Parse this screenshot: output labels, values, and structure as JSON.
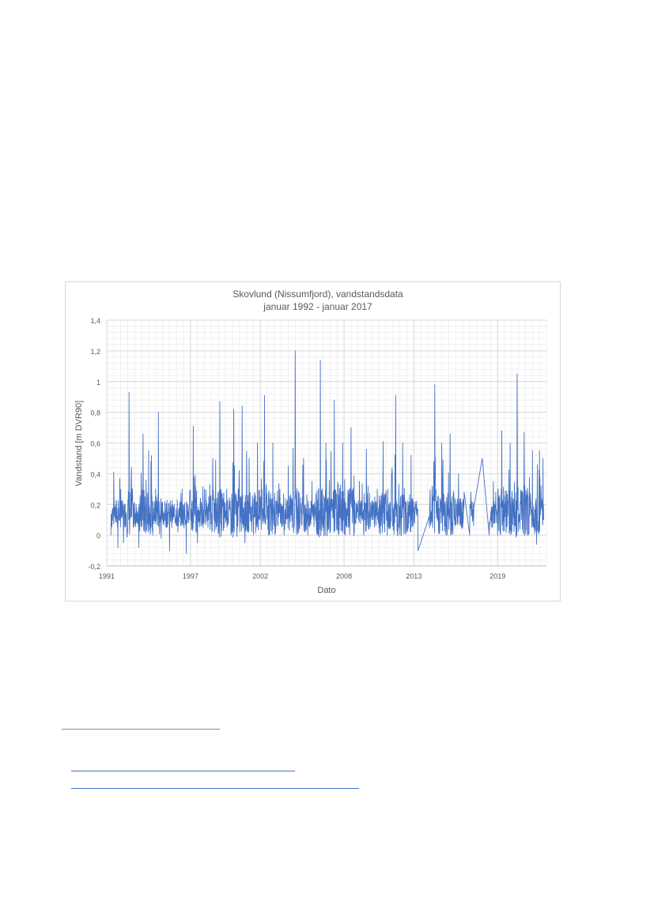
{
  "chart_data": {
    "type": "line",
    "title": "Skovlund (Nissumfjord), vandstandsdata",
    "subtitle": "januar 1992 - januar 2017",
    "xlabel": "Dato",
    "ylabel": "Vandstand [m DVR90]",
    "xlim": [
      1991,
      2022.5
    ],
    "ylim": [
      -0.2,
      1.4
    ],
    "xticks": [
      "1991",
      "1997",
      "2002",
      "2008",
      "2013",
      "2019"
    ],
    "yticks": [
      "-0,2",
      "0",
      "0,2",
      "0,4",
      "0,6",
      "0,8",
      "1",
      "1,2",
      "1,4"
    ],
    "grid": true,
    "legend": "none",
    "line_color": "#4472c4",
    "series": [
      {
        "x": [
          1991.3,
          1991.5,
          1991.8,
          1992.0,
          1992.2,
          1992.4,
          1992.6,
          1992.9,
          1993.1,
          1993.3,
          1993.6,
          1993.8,
          1994.0,
          1994.3,
          1994.5,
          1994.7,
          1994.9,
          1995.2,
          1995.5,
          1995.8,
          1996.1,
          1996.4,
          1996.7,
          1996.9,
          1997.2,
          1997.5,
          1997.8,
          1998.0,
          1998.3,
          1998.6,
          1998.9,
          1999.1,
          1999.4,
          1999.6,
          1999.9,
          2000.1,
          2000.4,
          2000.7,
          2000.9,
          2001.2,
          2001.5,
          2001.8,
          2002.0,
          2002.3,
          2002.6,
          2002.9,
          2003.1,
          2003.4,
          2003.7,
          2004.0,
          2004.3,
          2004.5,
          2004.8,
          2005.1,
          2005.4,
          2005.7,
          2006.0,
          2006.3,
          2006.5,
          2006.7,
          2007.0,
          2007.3,
          2007.6,
          2007.9,
          2008.2,
          2008.5,
          2008.8,
          2009.1,
          2009.4,
          2009.6,
          2009.9,
          2010.2,
          2010.5,
          2010.8,
          2011.1,
          2011.4,
          2011.7,
          2011.9,
          2012.2,
          2012.5,
          2012.8,
          2013.0,
          2013.3,
          2014.1,
          2014.5,
          2014.7,
          2015.0,
          2015.3,
          2015.6,
          2015.9,
          2016.2,
          2016.6,
          2017.0,
          2017.3,
          2017.9,
          2018.4,
          2018.7,
          2019.0,
          2019.3,
          2019.6,
          2019.9,
          2020.1,
          2020.4,
          2020.7,
          2020.9,
          2021.2,
          2021.5,
          2021.8,
          2022.0,
          2022.3
        ],
        "y": [
          0.0,
          0.41,
          -0.08,
          0.3,
          -0.05,
          0.15,
          0.93,
          0.05,
          0.2,
          -0.08,
          0.66,
          0.1,
          0.55,
          0.0,
          0.3,
          0.8,
          -0.02,
          0.15,
          -0.1,
          0.12,
          0.02,
          0.3,
          -0.12,
          0.1,
          0.71,
          -0.05,
          0.2,
          0.3,
          0.1,
          0.5,
          0.06,
          0.87,
          0.05,
          0.3,
          0.0,
          0.82,
          0.1,
          0.84,
          -0.05,
          0.5,
          0.05,
          0.6,
          0.25,
          0.91,
          0.0,
          0.6,
          0.05,
          0.3,
          0.0,
          0.45,
          0.05,
          1.2,
          0.1,
          0.5,
          0.0,
          0.35,
          0.1,
          1.14,
          0.05,
          0.6,
          0.1,
          0.88,
          0.0,
          0.6,
          0.05,
          0.7,
          0.1,
          0.35,
          0.0,
          0.56,
          0.1,
          0.25,
          0.05,
          0.61,
          0.0,
          0.4,
          0.91,
          0.1,
          0.6,
          0.05,
          0.52,
          0.1,
          -0.1,
          0.12,
          0.98,
          0.1,
          0.6,
          0.0,
          0.66,
          0.1,
          0.4,
          0.28,
          0.0,
          0.18,
          0.5,
          0.0,
          0.35,
          0.0,
          0.68,
          0.1,
          0.6,
          0.2,
          1.05,
          0.1,
          0.67,
          0.0,
          0.55,
          -0.06,
          0.55,
          0.1
        ]
      }
    ]
  }
}
